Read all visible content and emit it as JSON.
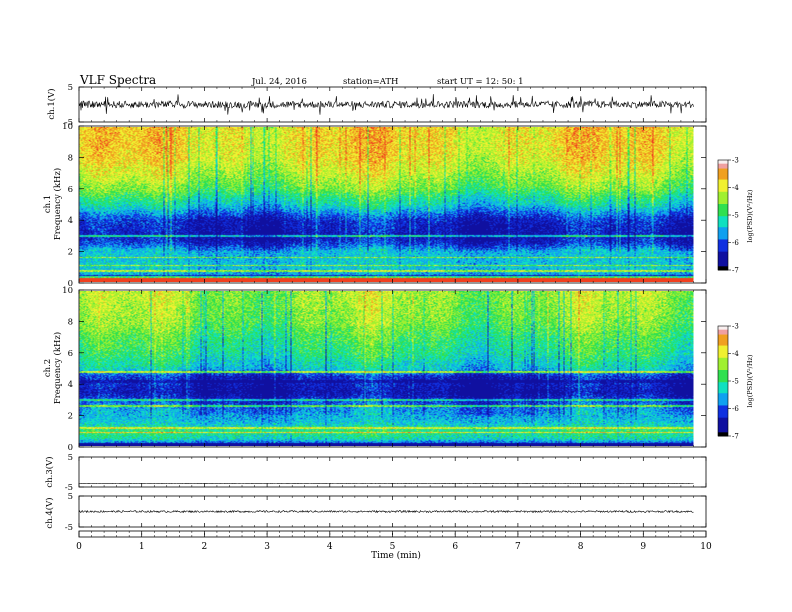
{
  "header": {
    "title": "VLF  Spectra",
    "date": "Jul.  24,  2016",
    "station": "station=ATH",
    "start": "start   UT  =    12:  50:  1"
  },
  "colors": {
    "scale": [
      "#000000",
      "#1010a0",
      "#1030e0",
      "#10a0f0",
      "#10e0c0",
      "#30e050",
      "#a0f030",
      "#f0f030",
      "#f0a020",
      "#f04020",
      "#e8e8e8"
    ]
  },
  "chart_data": [
    {
      "type": "line",
      "id": "ch1-waveform",
      "ylabel": "ch.1(V)",
      "ylim": [
        -5,
        5
      ],
      "yticks": [
        "5",
        "-5"
      ],
      "xlim": [
        0,
        10
      ],
      "description_values": {
        "baseline": 0,
        "typical_amplitude": 1,
        "spike_max": 3
      }
    },
    {
      "type": "heatmap",
      "id": "ch1-spectrogram",
      "ylabel": "ch.1\nFrequency  (kHz)",
      "ylabel_lines": [
        "ch.1",
        "Frequency  (kHz)"
      ],
      "ylim": [
        0,
        10
      ],
      "yticks": [
        "0",
        "2",
        "4",
        "6",
        "8",
        "10"
      ],
      "xlim": [
        0,
        10
      ],
      "colorbar": {
        "label": "log(PSD)(V²/Hz)",
        "range": [
          -7,
          -3
        ],
        "ticks": [
          "-3",
          "-4",
          "-5",
          "-6",
          "-7"
        ]
      },
      "profile_freq_khz": [
        0,
        0.5,
        1,
        2,
        2.5,
        3,
        4,
        4.5,
        5,
        5.5,
        6,
        7,
        8,
        9,
        10
      ],
      "profile_logpsd": [
        -3.2,
        -5.6,
        -5.4,
        -5.5,
        -6.2,
        -6.5,
        -6.3,
        -5.8,
        -5.3,
        -5.0,
        -4.6,
        -4.2,
        -3.9,
        -3.8,
        -3.8
      ]
    },
    {
      "type": "heatmap",
      "id": "ch2-spectrogram",
      "ylabel": "ch.2\nFrequency  (kHz)",
      "ylabel_lines": [
        "ch.2",
        "Frequency  (kHz)"
      ],
      "ylim": [
        0,
        10
      ],
      "yticks": [
        "0",
        "2",
        "4",
        "6",
        "8",
        "10"
      ],
      "xlim": [
        0,
        10
      ],
      "colorbar": {
        "label": "log(PSD)(V²/Hz)",
        "range": [
          -7,
          -3
        ],
        "ticks": [
          "-3",
          "-4",
          "-5",
          "-6",
          "-7"
        ]
      },
      "profile_freq_khz": [
        0,
        0.5,
        1,
        1.5,
        2,
        2.5,
        3,
        3.5,
        4,
        4.5,
        5,
        6,
        7,
        8,
        9,
        10
      ],
      "profile_logpsd": [
        -6.5,
        -5.2,
        -4.9,
        -5.4,
        -5.6,
        -5.8,
        -6.2,
        -6.6,
        -6.4,
        -6.3,
        -5.4,
        -5.0,
        -4.8,
        -4.5,
        -4.4,
        -4.3
      ]
    },
    {
      "type": "line",
      "id": "ch3-waveform",
      "ylabel": "ch.3(V)",
      "ylim": [
        -5,
        5
      ],
      "yticks": [
        "5",
        "-5"
      ],
      "xlim": [
        0,
        10
      ],
      "description_values": {
        "baseline": -5,
        "typical_amplitude": 0
      }
    },
    {
      "type": "line",
      "id": "ch4-waveform",
      "ylabel": "ch.4(V)",
      "ylim": [
        -5,
        5
      ],
      "yticks": [
        "5",
        "-5"
      ],
      "xlim": [
        0,
        10
      ],
      "description_values": {
        "baseline": 0,
        "typical_amplitude": 0.3
      }
    }
  ],
  "x_axis": {
    "label": "Time  (min)",
    "ticks": [
      "0",
      "1",
      "2",
      "3",
      "4",
      "5",
      "6",
      "7",
      "8",
      "9",
      "10"
    ],
    "data_end": 9.8
  }
}
